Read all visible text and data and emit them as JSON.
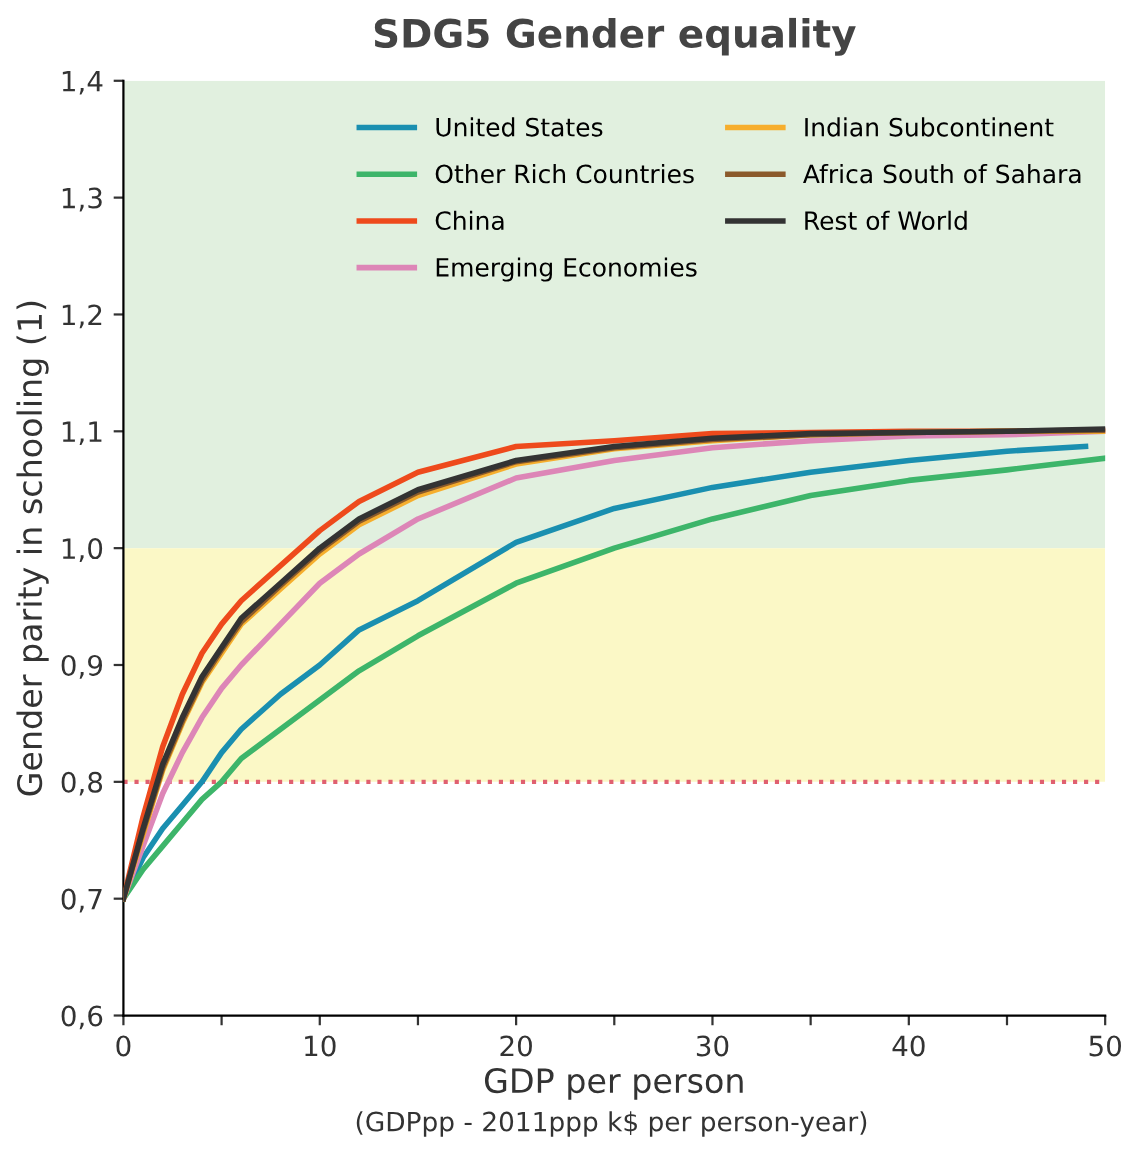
{
  "chart_data": {
    "type": "line",
    "title": "SDG5 Gender equality",
    "xlabel": "GDP per person",
    "ylabel": "Gender parity in schooling (1)",
    "annotations": [
      "(GDPpp - 2011ppp k$ per person-year)"
    ],
    "x": [
      0,
      1,
      2,
      3,
      4,
      5,
      6,
      8,
      10,
      12,
      15,
      20,
      25,
      30,
      35,
      40,
      45,
      50
    ],
    "series": [
      {
        "name": "United States",
        "color": "#1a8fb0",
        "x": [
          0,
          1,
          2,
          3,
          4,
          5,
          6,
          8,
          10,
          12,
          15,
          20,
          25,
          30,
          35,
          40,
          45,
          49
        ],
        "values": [
          0.7,
          0.735,
          0.76,
          0.78,
          0.8,
          0.825,
          0.845,
          0.875,
          0.9,
          0.93,
          0.955,
          1.005,
          1.034,
          1.052,
          1.065,
          1.075,
          1.083,
          1.087
        ]
      },
      {
        "name": "Other Rich Countries",
        "color": "#3db56a",
        "values": [
          0.7,
          0.725,
          0.745,
          0.765,
          0.785,
          0.8,
          0.82,
          0.845,
          0.87,
          0.895,
          0.925,
          0.97,
          1.0,
          1.025,
          1.045,
          1.058,
          1.067,
          1.077
        ]
      },
      {
        "name": "China",
        "color": "#ee4a1c",
        "values": [
          0.7,
          0.77,
          0.83,
          0.875,
          0.91,
          0.935,
          0.955,
          0.985,
          1.015,
          1.04,
          1.065,
          1.087,
          1.092,
          1.098,
          1.099,
          1.1,
          1.1,
          1.1
        ]
      },
      {
        "name": "Emerging Economies",
        "color": "#dd86b7",
        "values": [
          0.7,
          0.745,
          0.79,
          0.825,
          0.855,
          0.88,
          0.9,
          0.935,
          0.97,
          0.995,
          1.025,
          1.06,
          1.075,
          1.086,
          1.092,
          1.096,
          1.097,
          1.1
        ]
      },
      {
        "name": "Indian Subcontinent",
        "color": "#f6ae2d",
        "values": [
          0.7,
          0.755,
          0.81,
          0.85,
          0.885,
          0.91,
          0.935,
          0.965,
          0.995,
          1.02,
          1.045,
          1.072,
          1.085,
          1.092,
          1.097,
          1.099,
          1.1,
          1.1
        ]
      },
      {
        "name": "Africa South of Sahara",
        "color": "#8b5a2b",
        "values": [
          0.7,
          0.758,
          0.812,
          0.852,
          0.887,
          0.913,
          0.937,
          0.968,
          0.998,
          1.023,
          1.048,
          1.074,
          1.086,
          1.093,
          1.097,
          1.099,
          1.1,
          1.101
        ]
      },
      {
        "name": "Rest of World",
        "color": "#333333",
        "values": [
          0.7,
          0.76,
          0.815,
          0.855,
          0.89,
          0.915,
          0.94,
          0.97,
          1.0,
          1.025,
          1.05,
          1.075,
          1.087,
          1.094,
          1.098,
          1.099,
          1.1,
          1.102
        ]
      }
    ],
    "xlim": [
      0,
      50
    ],
    "ylim": [
      0.6,
      1.4
    ],
    "xticks": [
      0,
      {
        "value": 5,
        "label": null
      },
      10,
      {
        "value": 15,
        "label": null
      },
      20,
      {
        "value": 25,
        "label": null
      },
      30,
      {
        "value": 35,
        "label": null
      },
      40,
      {
        "value": 45,
        "label": null
      },
      50
    ],
    "yticks": [
      {
        "value": 0.6,
        "label": "0,6"
      },
      {
        "value": 0.7,
        "label": "0,7"
      },
      {
        "value": 0.8,
        "label": "0,8"
      },
      {
        "value": 0.9,
        "label": "0,9"
      },
      {
        "value": 1.0,
        "label": "1,0"
      },
      {
        "value": 1.1,
        "label": "1,1"
      },
      {
        "value": 1.2,
        "label": "1,2"
      },
      {
        "value": 1.3,
        "label": "1,3"
      },
      {
        "value": 1.4,
        "label": "1,4"
      }
    ],
    "bands": [
      {
        "axis": "y",
        "from": 1.0,
        "to": 1.4,
        "color": "#e1f0df"
      },
      {
        "axis": "y",
        "from": 0.8,
        "to": 1.0,
        "color": "#fbf8c6"
      }
    ],
    "ref_lines": [
      {
        "axis": "y",
        "value": 0.8,
        "color": "#e06070",
        "line_style": "dotted"
      }
    ],
    "legend": "top right",
    "grid": false,
    "marker": "none",
    "line_style": "solid"
  }
}
